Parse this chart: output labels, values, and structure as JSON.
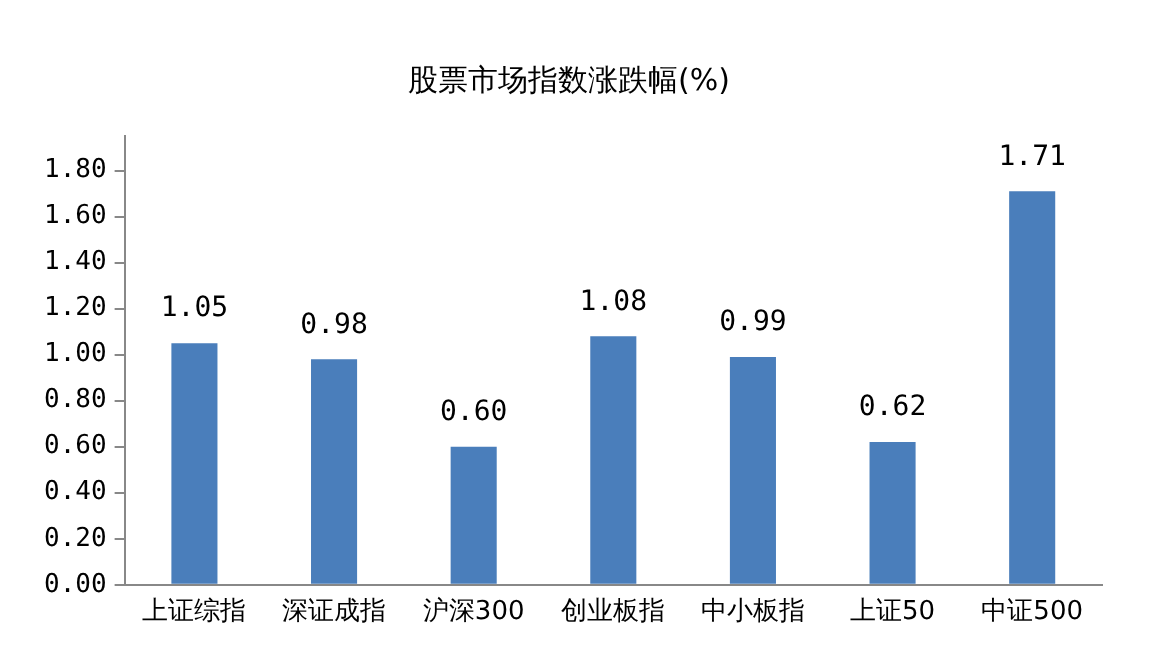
{
  "chart_data": {
    "type": "bar",
    "title": "股票市场指数涨跌幅(%)",
    "categories": [
      "上证综指",
      "深证成指",
      "沪深300",
      "创业板指",
      "中小板指",
      "上证50",
      "中证500"
    ],
    "values": [
      1.05,
      0.98,
      0.6,
      1.08,
      0.99,
      0.62,
      1.71
    ],
    "color": "#4a7ebb",
    "ylim": [
      0,
      1.95
    ],
    "yticks": [
      {
        "value": 0,
        "label": "0.00"
      },
      {
        "value": 0.2,
        "label": "0.20"
      },
      {
        "value": 0.4,
        "label": "0.40"
      },
      {
        "value": 0.6,
        "label": "0.60"
      },
      {
        "value": 0.8,
        "label": "0.80"
      },
      {
        "value": 1.0,
        "label": "1.00"
      },
      {
        "value": 1.2,
        "label": "1.20"
      },
      {
        "value": 1.4,
        "label": "1.40"
      },
      {
        "value": 1.6,
        "label": "1.60"
      },
      {
        "value": 1.8,
        "label": "1.80"
      }
    ],
    "value_labels": [
      "1.05",
      "0.98",
      "0.60",
      "1.08",
      "0.99",
      "0.62",
      "1.71"
    ],
    "grid": false,
    "legend": false
  }
}
